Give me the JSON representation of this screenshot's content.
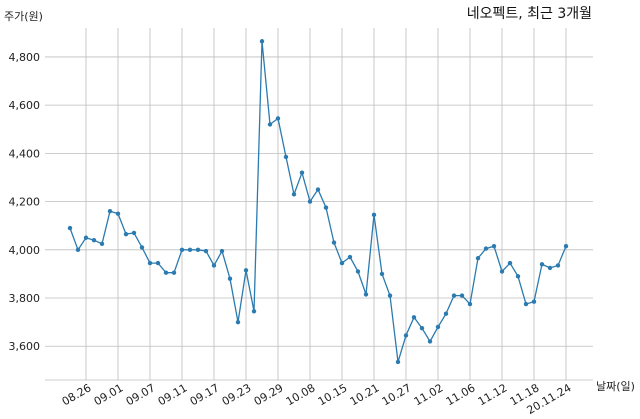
{
  "chart_data": {
    "type": "line",
    "title": "네오펙트, 최근 3개월",
    "ylabel": "주가(원)",
    "xlabel": "날짜(일)",
    "ylim": [
      3460,
      4920
    ],
    "yticks": [
      3600,
      3800,
      4000,
      4200,
      4400,
      4600,
      4800
    ],
    "ytick_labels": [
      "3,600",
      "3,800",
      "4,000",
      "4,200",
      "4,400",
      "4,600",
      "4,800"
    ],
    "xticks": [
      "08.26",
      "09.01",
      "09.07",
      "09.11",
      "09.17",
      "09.23",
      "09.29",
      "10.08",
      "10.15",
      "10.21",
      "10.27",
      "11.02",
      "11.06",
      "11.12",
      "11.18",
      "20.11.24"
    ],
    "grid": true,
    "color": "#2b7bb0",
    "series": [
      {
        "values": [
          4090,
          4000,
          4050,
          4040,
          4025,
          4160,
          4150,
          4065,
          4070,
          4010,
          3945,
          3945,
          3905,
          3905,
          4000,
          4000,
          4000,
          3995,
          3935,
          3995,
          3880,
          3700,
          3915,
          3745,
          4865,
          4520,
          4545,
          4385,
          4230,
          4320,
          4200,
          4250,
          4175,
          4030,
          3945,
          3970,
          3910,
          3815,
          4145,
          3900,
          3810,
          3535,
          3645,
          3720,
          3675,
          3620,
          3680,
          3735,
          3810,
          3810,
          3775,
          3965,
          4005,
          4015,
          3910,
          3945,
          3890,
          3775,
          3785,
          3940,
          3925,
          3935,
          4015
        ]
      }
    ]
  }
}
